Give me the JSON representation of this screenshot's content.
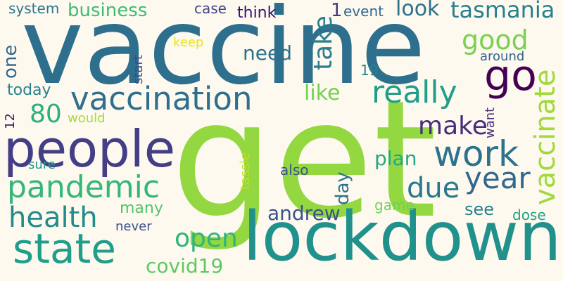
{
  "background": "#fdf9ef",
  "words": [
    {
      "id": "vaccine",
      "text": "vaccine",
      "color": "#2e6f8e"
    },
    {
      "id": "get",
      "text": "get",
      "color": "#93d840"
    },
    {
      "id": "lockdown",
      "text": "lockdown",
      "color": "#21918c"
    },
    {
      "id": "people",
      "text": "people",
      "color": "#433e85"
    },
    {
      "id": "vaccination",
      "text": "vaccination",
      "color": "#2e6f8e"
    },
    {
      "id": "go",
      "text": "go",
      "color": "#440154"
    },
    {
      "id": "state",
      "text": "state",
      "color": "#1f9e89"
    },
    {
      "id": "work",
      "text": "work",
      "color": "#2c728e"
    },
    {
      "id": "vaccinate",
      "text": "vaccinate",
      "color": "#a0da39"
    },
    {
      "id": "pandemic",
      "text": "pandemic",
      "color": "#35b779"
    },
    {
      "id": "really",
      "text": "really",
      "color": "#1f9e89"
    },
    {
      "id": "year",
      "text": "year",
      "color": "#31688e"
    },
    {
      "id": "health",
      "text": "health",
      "color": "#228c8d"
    },
    {
      "id": "due",
      "text": "due",
      "color": "#2a788e"
    },
    {
      "id": "tasmania",
      "text": "tasmania",
      "color": "#277f8e"
    },
    {
      "id": "good",
      "text": "good",
      "color": "#7ad151"
    },
    {
      "id": "make",
      "text": "make",
      "color": "#472d7b"
    },
    {
      "id": "open",
      "text": "open",
      "color": "#2fb47c"
    },
    {
      "id": "take",
      "text": "take",
      "color": "#287d8e"
    },
    {
      "id": "need",
      "text": "need",
      "color": "#2d708e"
    },
    {
      "id": "n80",
      "text": "80",
      "color": "#2ab07f"
    },
    {
      "id": "andrew",
      "text": "andrew",
      "color": "#3b528b"
    },
    {
      "id": "covid19",
      "text": "covid19",
      "color": "#5ec962"
    },
    {
      "id": "look",
      "text": "look",
      "color": "#2d708e"
    },
    {
      "id": "business",
      "text": "business",
      "color": "#3fbc73"
    },
    {
      "id": "like",
      "text": "like",
      "color": "#75d054"
    },
    {
      "id": "one",
      "text": "one",
      "color": "#31688e"
    },
    {
      "id": "many",
      "text": "many",
      "color": "#52c569"
    },
    {
      "id": "plan",
      "text": "plan",
      "color": "#22a884"
    },
    {
      "id": "day",
      "text": "day",
      "color": "#2c728e"
    },
    {
      "id": "see",
      "text": "see",
      "color": "#26828e"
    },
    {
      "id": "today",
      "text": "today",
      "color": "#26828e"
    },
    {
      "id": "think",
      "text": "think",
      "color": "#3b0f70"
    },
    {
      "id": "system",
      "text": "system",
      "color": "#2a788e"
    },
    {
      "id": "case",
      "text": "case",
      "color": "#414487"
    },
    {
      "id": "event",
      "text": "event",
      "color": "#31688e"
    },
    {
      "id": "n1",
      "text": "1",
      "color": "#443983"
    },
    {
      "id": "keep",
      "text": "keep",
      "color": "#e8e419"
    },
    {
      "id": "start",
      "text": "start",
      "color": "#3e4a89"
    },
    {
      "id": "around",
      "text": "around",
      "color": "#34618d"
    },
    {
      "id": "n19",
      "text": "19",
      "color": "#26828e"
    },
    {
      "id": "n12",
      "text": "12",
      "color": "#481b6d"
    },
    {
      "id": "would",
      "text": "would",
      "color": "#a5db36"
    },
    {
      "id": "want",
      "text": "want",
      "color": "#46327e"
    },
    {
      "id": "sure",
      "text": "sure",
      "color": "#1f968b"
    },
    {
      "id": "tassie",
      "text": "tassie",
      "color": "#c2df23"
    },
    {
      "id": "also",
      "text": "also",
      "color": "#3b528b"
    },
    {
      "id": "game",
      "text": "game",
      "color": "#73d056"
    },
    {
      "id": "never",
      "text": "never",
      "color": "#3b528b"
    },
    {
      "id": "dose",
      "text": "dose",
      "color": "#1fa187"
    }
  ]
}
